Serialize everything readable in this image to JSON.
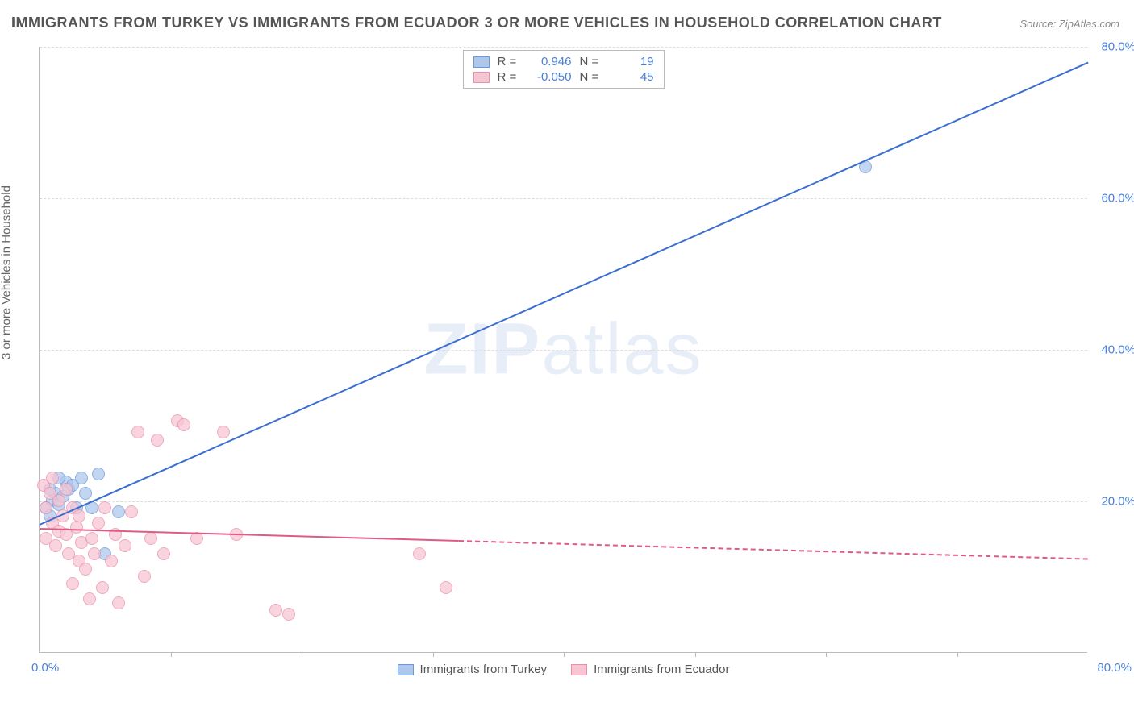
{
  "title": "IMMIGRANTS FROM TURKEY VS IMMIGRANTS FROM ECUADOR 3 OR MORE VEHICLES IN HOUSEHOLD CORRELATION CHART",
  "source": "Source: ZipAtlas.com",
  "y_axis_label": "3 or more Vehicles in Household",
  "watermark_bold": "ZIP",
  "watermark_rest": "atlas",
  "chart": {
    "type": "scatter",
    "xlim": [
      0,
      80
    ],
    "ylim": [
      0,
      80
    ],
    "x_zero_label": "0.0%",
    "x_max_label": "80.0%",
    "y_ticks": [
      {
        "v": 20,
        "label": "20.0%"
      },
      {
        "v": 40,
        "label": "40.0%"
      },
      {
        "v": 60,
        "label": "60.0%"
      },
      {
        "v": 80,
        "label": "80.0%"
      }
    ],
    "x_grid": [
      10,
      20,
      30,
      40,
      50,
      60,
      70
    ],
    "background_color": "#ffffff",
    "grid_color": "#dddddd",
    "series": [
      {
        "name": "Immigrants from Turkey",
        "color_fill": "#aec7ed",
        "color_stroke": "#6b98d8",
        "marker_radius": 8,
        "trend": {
          "x1": 0,
          "y1": 17,
          "x2": 80,
          "y2": 78,
          "color": "#3a6fd0",
          "dash_from": 80
        },
        "R": "0.946",
        "N": "19",
        "points": [
          [
            0.5,
            19
          ],
          [
            0.8,
            18
          ],
          [
            1,
            20
          ],
          [
            1.2,
            21
          ],
          [
            1.5,
            19.5
          ],
          [
            1.8,
            20.5
          ],
          [
            2,
            22.5
          ],
          [
            2.2,
            21.5
          ],
          [
            2.5,
            22
          ],
          [
            2.8,
            19
          ],
          [
            3.2,
            23
          ],
          [
            3.5,
            21
          ],
          [
            4,
            19
          ],
          [
            4.5,
            23.5
          ],
          [
            5,
            13
          ],
          [
            6,
            18.5
          ],
          [
            0.8,
            21.5
          ],
          [
            1.5,
            23
          ],
          [
            63,
            64
          ]
        ]
      },
      {
        "name": "Immigrants from Ecuador",
        "color_fill": "#f7c6d3",
        "color_stroke": "#e98fa9",
        "marker_radius": 8,
        "trend": {
          "x1": 0,
          "y1": 16.5,
          "x2": 80,
          "y2": 12.5,
          "color": "#e05a87",
          "dash_from": 32
        },
        "R": "-0.050",
        "N": "45",
        "points": [
          [
            0.3,
            22
          ],
          [
            0.5,
            19
          ],
          [
            0.5,
            15
          ],
          [
            0.8,
            21
          ],
          [
            1,
            17
          ],
          [
            1,
            23
          ],
          [
            1.2,
            14
          ],
          [
            1.5,
            16
          ],
          [
            1.5,
            20
          ],
          [
            1.8,
            18
          ],
          [
            2,
            15.5
          ],
          [
            2,
            21.5
          ],
          [
            2.2,
            13
          ],
          [
            2.5,
            19
          ],
          [
            2.5,
            9
          ],
          [
            2.8,
            16.5
          ],
          [
            3,
            18
          ],
          [
            3,
            12
          ],
          [
            3.2,
            14.5
          ],
          [
            3.5,
            11
          ],
          [
            3.8,
            7
          ],
          [
            4,
            15
          ],
          [
            4.2,
            13
          ],
          [
            4.5,
            17
          ],
          [
            4.8,
            8.5
          ],
          [
            5,
            19
          ],
          [
            5.5,
            12
          ],
          [
            5.8,
            15.5
          ],
          [
            6,
            6.5
          ],
          [
            6.5,
            14
          ],
          [
            7,
            18.5
          ],
          [
            7.5,
            29
          ],
          [
            8,
            10
          ],
          [
            8.5,
            15
          ],
          [
            9,
            28
          ],
          [
            9.5,
            13
          ],
          [
            10.5,
            30.5
          ],
          [
            11,
            30
          ],
          [
            12,
            15
          ],
          [
            14,
            29
          ],
          [
            15,
            15.5
          ],
          [
            18,
            5.5
          ],
          [
            19,
            5
          ],
          [
            29,
            13
          ],
          [
            31,
            8.5
          ]
        ]
      }
    ]
  },
  "correlation_box": {
    "R_label": "R =",
    "N_label": "N ="
  }
}
